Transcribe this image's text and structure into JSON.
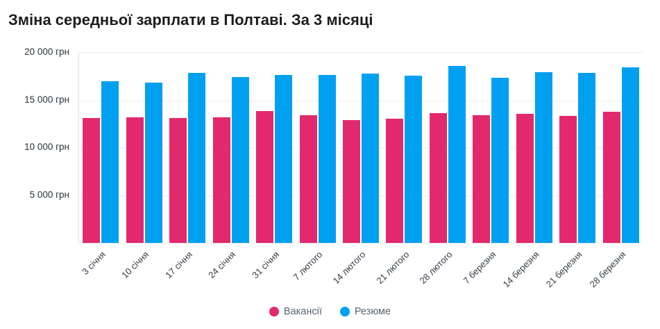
{
  "header": {
    "title": "Зміна середньої зарплати в Полтаві. За 3 місяці"
  },
  "chart_data": {
    "type": "bar",
    "title": "Зміна середньої зарплати в Полтаві. За 3 місяці",
    "unit": "грн",
    "categories": [
      "3 січня",
      "10 січня",
      "17 січня",
      "24 січня",
      "31 січня",
      "7 лютого",
      "14 лютого",
      "21 лютого",
      "28 лютого",
      "7 березня",
      "14 березня",
      "21 березня",
      "28 березня"
    ],
    "series": [
      {
        "name": "Вакансії",
        "color": "#e2296d",
        "values": [
          13150,
          13200,
          13150,
          13200,
          13900,
          13400,
          12900,
          13100,
          13650,
          13450,
          13550,
          13350,
          13800
        ]
      },
      {
        "name": "Резюме",
        "color": "#00a0f0",
        "values": [
          17000,
          16850,
          17900,
          17450,
          17700,
          17650,
          17800,
          17600,
          18650,
          17350,
          17950,
          17850,
          18500
        ]
      }
    ],
    "ylim": [
      0,
      20000
    ],
    "y_ticks": [
      {
        "value": 20000,
        "label": "20 000 грн"
      },
      {
        "value": 15000,
        "label": "15 000 грн"
      },
      {
        "value": 10000,
        "label": "10 000 грн"
      },
      {
        "value": 5000,
        "label": "5 000 грн"
      }
    ],
    "grid": true,
    "legend_position": "bottom"
  }
}
